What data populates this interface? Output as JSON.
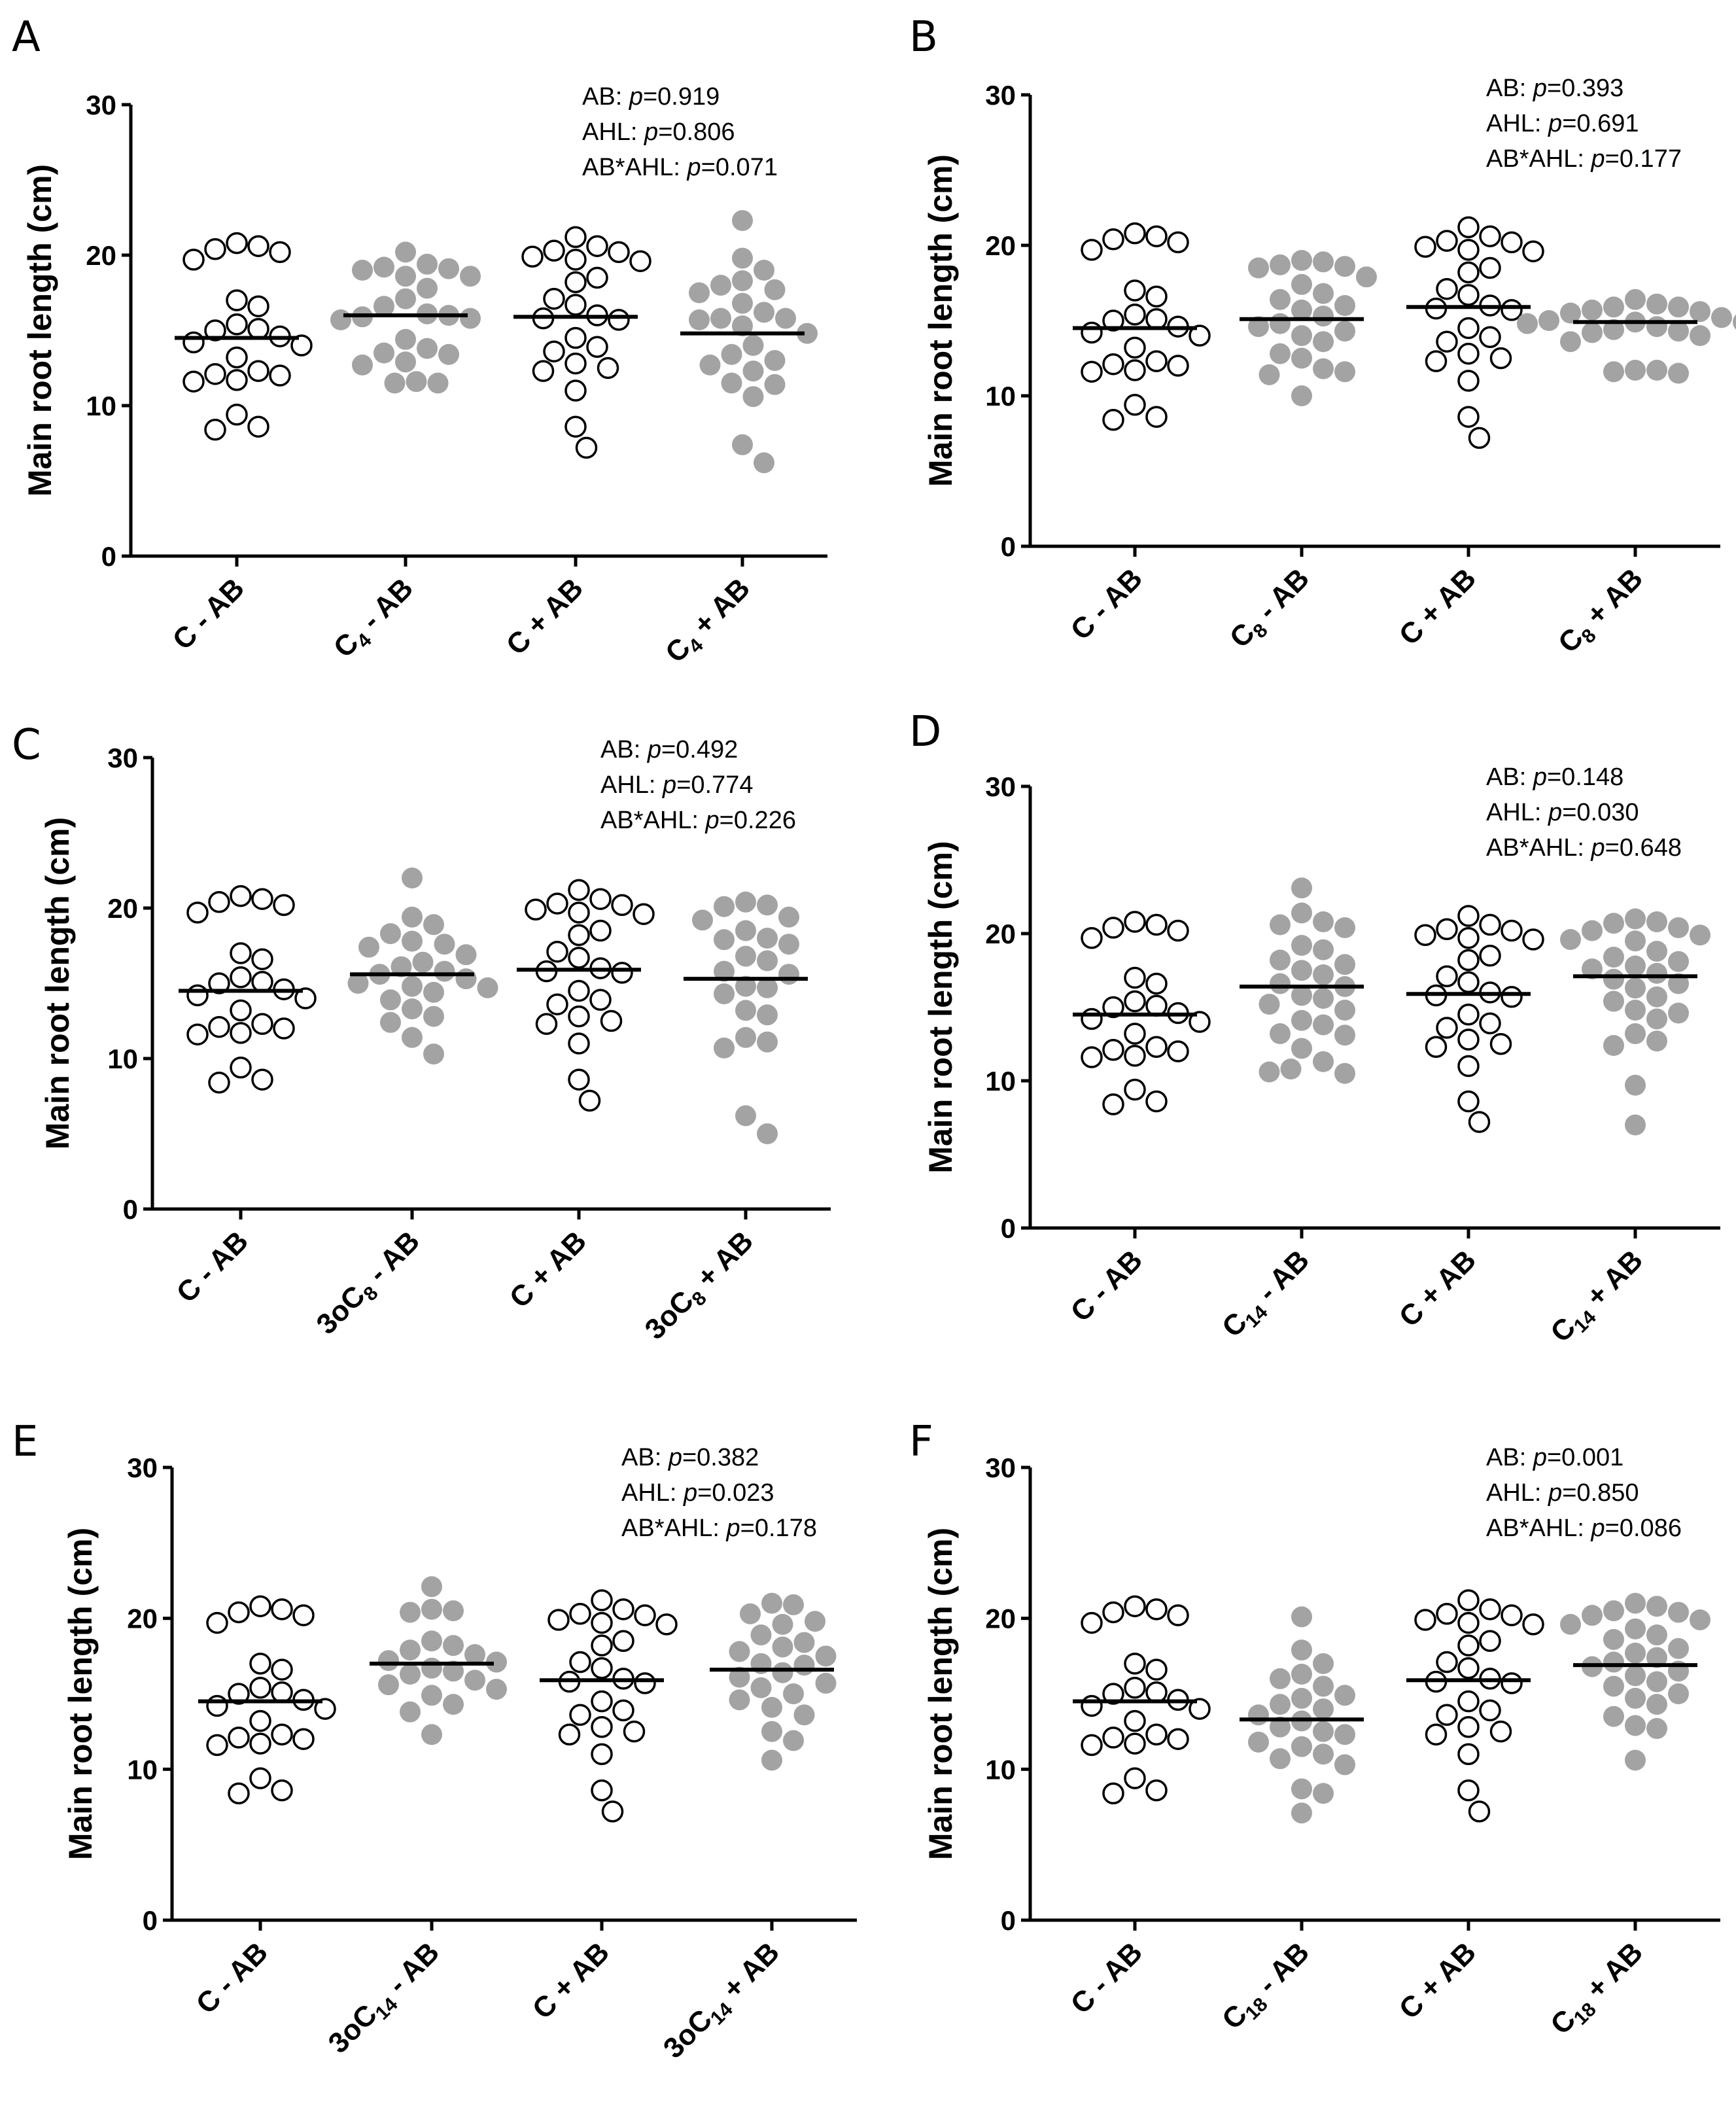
{
  "figure": {
    "ylabel": "Main root length (cm)"
  },
  "chart_data": [
    {
      "panel": "A",
      "type": "scatter",
      "ylabel": "Main root length (cm)",
      "ylim": [
        0,
        30
      ],
      "yticks": [
        0,
        10,
        20,
        30
      ],
      "xlabels": [
        [
          "C - AB"
        ],
        [
          "C",
          "4",
          " - AB"
        ],
        [
          "C + AB"
        ],
        [
          "C",
          "4",
          " + AB"
        ]
      ],
      "stats": [
        [
          "AB: ",
          "p",
          "=0.919"
        ],
        [
          "AHL: ",
          "p",
          "=0.806"
        ],
        [
          "AB*AHL: ",
          "p",
          "=0.071"
        ]
      ],
      "groups": [
        {
          "name": "C - AB",
          "filled": false,
          "mean": 14.5,
          "values": [
            20.8,
            20.4,
            20.2,
            20.6,
            19.7,
            17.0,
            16.6,
            15.4,
            15.1,
            15.0,
            14.6,
            14.2,
            14.0,
            13.2,
            12.1,
            12.0,
            12.3,
            11.7,
            11.6,
            9.4,
            8.6,
            8.4
          ]
        },
        {
          "name": "C4 - AB",
          "filled": true,
          "mean": 16.0,
          "values": [
            19.2,
            19.1,
            19.4,
            20.2,
            19.0,
            18.6,
            18.6,
            17.8,
            17.1,
            16.6,
            16.1,
            16.0,
            15.8,
            15.7,
            15.9,
            14.4,
            13.8,
            13.5,
            13.4,
            12.9,
            12.7,
            11.6,
            11.5,
            11.5
          ]
        },
        {
          "name": "C + AB",
          "filled": false,
          "mean": 15.9,
          "values": [
            21.2,
            20.6,
            20.2,
            20.3,
            19.9,
            19.7,
            19.6,
            18.5,
            18.2,
            17.1,
            16.7,
            16.0,
            15.7,
            15.8,
            14.5,
            13.9,
            13.6,
            12.8,
            12.5,
            12.3,
            11.0,
            8.6,
            7.2
          ]
        },
        {
          "name": "C4 + AB",
          "filled": true,
          "mean": 14.8,
          "values": [
            22.3,
            19.8,
            19.0,
            18.3,
            18.0,
            17.5,
            17.7,
            16.8,
            16.2,
            15.8,
            15.8,
            15.3,
            15.7,
            14.8,
            14.0,
            13.4,
            13.0,
            12.7,
            12.3,
            11.5,
            11.4,
            10.6,
            7.4,
            6.2
          ]
        }
      ]
    },
    {
      "panel": "B",
      "type": "scatter",
      "ylabel": "Main root length (cm)",
      "ylim": [
        0,
        30
      ],
      "yticks": [
        0,
        10,
        20,
        30
      ],
      "xlabels": [
        [
          "C - AB"
        ],
        [
          "C",
          "8",
          " - AB"
        ],
        [
          "C + AB"
        ],
        [
          "C",
          "8",
          " + AB"
        ]
      ],
      "stats": [
        [
          "AB: ",
          "p",
          "=0.393"
        ],
        [
          "AHL: ",
          "p",
          "=0.691"
        ],
        [
          "AB*AHL: ",
          "p",
          "=0.177"
        ]
      ],
      "groups": [
        {
          "name": "C - AB",
          "filled": false,
          "mean": 14.5,
          "values": [
            20.8,
            20.4,
            20.2,
            20.6,
            19.7,
            17.0,
            16.6,
            15.4,
            15.1,
            15.0,
            14.6,
            14.2,
            14.0,
            13.2,
            12.1,
            12.0,
            12.3,
            11.7,
            11.6,
            9.4,
            8.6,
            8.4
          ]
        },
        {
          "name": "C8 - AB",
          "filled": true,
          "mean": 15.1,
          "values": [
            19.0,
            18.7,
            18.6,
            18.9,
            18.5,
            17.9,
            17.4,
            16.8,
            16.4,
            16.0,
            15.7,
            15.3,
            14.8,
            14.6,
            14.3,
            14.0,
            13.6,
            12.8,
            12.5,
            11.8,
            11.6,
            11.4,
            10.0
          ]
        },
        {
          "name": "C + AB",
          "filled": false,
          "mean": 15.9,
          "values": [
            21.2,
            20.6,
            20.2,
            20.3,
            19.9,
            19.7,
            19.6,
            18.5,
            18.2,
            17.1,
            16.7,
            16.0,
            15.7,
            15.8,
            14.5,
            13.9,
            13.6,
            12.8,
            12.5,
            12.3,
            11.0,
            8.6,
            7.2
          ]
        },
        {
          "name": "C8 + AB",
          "filled": true,
          "mean": 14.9,
          "values": [
            16.4,
            16.1,
            15.9,
            15.7,
            15.9,
            15.5,
            15.6,
            15.2,
            15.0,
            14.9,
            14.9,
            14.8,
            14.6,
            14.4,
            14.3,
            14.2,
            14.2,
            14.0,
            13.6,
            11.7,
            11.6,
            11.7,
            11.5
          ]
        }
      ]
    },
    {
      "panel": "C",
      "type": "scatter",
      "ylabel": "Main root length (cm)",
      "ylim": [
        0,
        30
      ],
      "yticks": [
        0,
        10,
        20,
        30
      ],
      "xlabels": [
        [
          "C - AB"
        ],
        [
          "3oC",
          "8",
          " - AB"
        ],
        [
          "C + AB"
        ],
        [
          "3oC",
          "8",
          " + AB"
        ]
      ],
      "stats": [
        [
          "AB: ",
          "p",
          "=0.492"
        ],
        [
          "AHL: ",
          "p",
          "=0.774"
        ],
        [
          "AB*AHL: ",
          "p",
          "=0.226"
        ]
      ],
      "groups": [
        {
          "name": "C - AB",
          "filled": false,
          "mean": 14.5,
          "values": [
            20.8,
            20.4,
            20.2,
            20.6,
            19.7,
            17.0,
            16.6,
            15.4,
            15.1,
            15.0,
            14.6,
            14.2,
            14.0,
            13.2,
            12.1,
            12.0,
            12.3,
            11.7,
            11.6,
            9.4,
            8.6,
            8.4
          ]
        },
        {
          "name": "3oC8 - AB",
          "filled": true,
          "mean": 15.6,
          "values": [
            22.0,
            19.4,
            18.9,
            18.3,
            17.8,
            17.6,
            17.4,
            16.9,
            16.4,
            16.1,
            15.8,
            15.6,
            15.3,
            15.0,
            14.8,
            14.7,
            14.4,
            13.9,
            13.3,
            12.8,
            12.4,
            11.4,
            10.3
          ]
        },
        {
          "name": "C + AB",
          "filled": false,
          "mean": 15.9,
          "values": [
            21.2,
            20.6,
            20.2,
            20.3,
            19.9,
            19.7,
            19.6,
            18.5,
            18.2,
            17.1,
            16.7,
            16.0,
            15.7,
            15.8,
            14.5,
            13.9,
            13.6,
            12.8,
            12.5,
            12.3,
            11.0,
            8.6,
            7.2
          ]
        },
        {
          "name": "3oC8 + AB",
          "filled": true,
          "mean": 15.3,
          "values": [
            20.4,
            20.2,
            20.1,
            19.2,
            19.4,
            18.5,
            18.0,
            17.6,
            17.9,
            16.8,
            16.5,
            15.8,
            15.6,
            14.8,
            14.7,
            14.3,
            13.2,
            12.9,
            11.4,
            11.1,
            10.7,
            6.2,
            5.0
          ]
        }
      ]
    },
    {
      "panel": "D",
      "type": "scatter",
      "ylabel": "Main root length (cm)",
      "ylim": [
        0,
        30
      ],
      "yticks": [
        0,
        10,
        20,
        30
      ],
      "xlabels": [
        [
          "C - AB"
        ],
        [
          "C",
          "14",
          " - AB"
        ],
        [
          "C + AB"
        ],
        [
          "C",
          "14",
          " + AB"
        ]
      ],
      "stats": [
        [
          "AB: ",
          "p",
          "=0.148"
        ],
        [
          "AHL: ",
          "p",
          "=0.030"
        ],
        [
          "AB*AHL: ",
          "p",
          "=0.648"
        ]
      ],
      "groups": [
        {
          "name": "C - AB",
          "filled": false,
          "mean": 14.5,
          "values": [
            20.8,
            20.4,
            20.2,
            20.6,
            19.7,
            17.0,
            16.6,
            15.4,
            15.1,
            15.0,
            14.6,
            14.2,
            14.0,
            13.2,
            12.1,
            12.0,
            12.3,
            11.7,
            11.6,
            9.4,
            8.6,
            8.4
          ]
        },
        {
          "name": "C14 - AB",
          "filled": true,
          "mean": 16.4,
          "values": [
            23.1,
            21.4,
            20.8,
            20.6,
            20.4,
            19.2,
            18.9,
            18.2,
            17.9,
            17.5,
            17.2,
            16.6,
            16.4,
            15.8,
            15.6,
            15.2,
            14.8,
            14.1,
            13.8,
            13.2,
            13.1,
            12.2,
            11.3,
            10.8,
            10.6,
            10.5
          ]
        },
        {
          "name": "C + AB",
          "filled": false,
          "mean": 15.9,
          "values": [
            21.2,
            20.6,
            20.2,
            20.3,
            19.9,
            19.7,
            19.6,
            18.5,
            18.2,
            17.1,
            16.7,
            16.0,
            15.7,
            15.8,
            14.5,
            13.9,
            13.6,
            12.8,
            12.5,
            12.3,
            11.0,
            8.6,
            7.2
          ]
        },
        {
          "name": "C14 + AB",
          "filled": true,
          "mean": 17.1,
          "values": [
            21.0,
            20.8,
            20.4,
            20.7,
            20.2,
            19.9,
            19.6,
            19.5,
            18.8,
            18.4,
            18.1,
            17.8,
            17.6,
            17.3,
            16.9,
            16.6,
            16.3,
            15.7,
            15.4,
            14.8,
            14.6,
            14.2,
            13.2,
            12.7,
            12.4,
            9.7,
            7.0
          ]
        }
      ]
    },
    {
      "panel": "E",
      "type": "scatter",
      "ylabel": "Main root length (cm)",
      "ylim": [
        0,
        30
      ],
      "yticks": [
        0,
        10,
        20,
        30
      ],
      "xlabels": [
        [
          "C - AB"
        ],
        [
          "3oC",
          "14",
          " - AB"
        ],
        [
          "C + AB"
        ],
        [
          "3oC",
          "14",
          " + AB"
        ]
      ],
      "stats": [
        [
          "AB: ",
          "p",
          "=0.382"
        ],
        [
          "AHL: ",
          "p",
          "=0.023"
        ],
        [
          "AB*AHL: ",
          "p",
          "=0.178"
        ]
      ],
      "groups": [
        {
          "name": "C - AB",
          "filled": false,
          "mean": 14.5,
          "values": [
            20.8,
            20.4,
            20.2,
            20.6,
            19.7,
            17.0,
            16.6,
            15.4,
            15.1,
            15.0,
            14.6,
            14.2,
            14.0,
            13.2,
            12.1,
            12.0,
            12.3,
            11.7,
            11.6,
            9.4,
            8.6,
            8.4
          ]
        },
        {
          "name": "3oC14 - AB",
          "filled": true,
          "mean": 17.0,
          "values": [
            22.1,
            20.6,
            20.5,
            20.4,
            18.5,
            18.2,
            17.9,
            17.6,
            17.2,
            17.1,
            16.7,
            16.5,
            16.3,
            15.9,
            15.6,
            15.3,
            14.9,
            14.3,
            13.8,
            12.3
          ]
        },
        {
          "name": "C + AB",
          "filled": false,
          "mean": 15.9,
          "values": [
            21.2,
            20.6,
            20.2,
            20.3,
            19.9,
            19.7,
            19.6,
            18.5,
            18.2,
            17.1,
            16.7,
            16.0,
            15.7,
            15.8,
            14.5,
            13.9,
            13.6,
            12.8,
            12.5,
            12.3,
            11.0,
            8.6,
            7.2
          ]
        },
        {
          "name": "3oC14 + AB",
          "filled": true,
          "mean": 16.6,
          "values": [
            21.0,
            20.9,
            20.3,
            19.8,
            19.6,
            18.9,
            18.4,
            18.1,
            17.8,
            17.5,
            17.0,
            16.9,
            16.4,
            16.1,
            15.7,
            15.4,
            15.0,
            14.6,
            14.1,
            13.6,
            12.5,
            11.9,
            10.6
          ]
        }
      ]
    },
    {
      "panel": "F",
      "type": "scatter",
      "ylabel": "Main root length (cm)",
      "ylim": [
        0,
        30
      ],
      "yticks": [
        0,
        10,
        20,
        30
      ],
      "xlabels": [
        [
          "C - AB"
        ],
        [
          "C",
          "18",
          " - AB"
        ],
        [
          "C + AB"
        ],
        [
          "C",
          "18",
          " + AB"
        ]
      ],
      "stats": [
        [
          "AB: ",
          "p",
          "=0.001"
        ],
        [
          "AHL: ",
          "p",
          "=0.850"
        ],
        [
          "AB*AHL: ",
          "p",
          "=0.086"
        ]
      ],
      "groups": [
        {
          "name": "C - AB",
          "filled": false,
          "mean": 14.5,
          "values": [
            20.8,
            20.4,
            20.2,
            20.6,
            19.7,
            17.0,
            16.6,
            15.4,
            15.1,
            15.0,
            14.6,
            14.2,
            14.0,
            13.2,
            12.1,
            12.0,
            12.3,
            11.7,
            11.6,
            9.4,
            8.6,
            8.4
          ]
        },
        {
          "name": "C18 - AB",
          "filled": true,
          "mean": 13.3,
          "values": [
            20.1,
            17.9,
            17.0,
            16.3,
            16.0,
            15.5,
            14.9,
            14.7,
            14.3,
            14.0,
            13.6,
            13.2,
            12.8,
            12.5,
            12.3,
            11.8,
            11.5,
            11.0,
            10.7,
            10.3,
            8.7,
            8.4,
            7.1
          ]
        },
        {
          "name": "C + AB",
          "filled": false,
          "mean": 15.9,
          "values": [
            21.2,
            20.6,
            20.2,
            20.3,
            19.9,
            19.7,
            19.6,
            18.5,
            18.2,
            17.1,
            16.7,
            16.0,
            15.7,
            15.8,
            14.5,
            13.9,
            13.6,
            12.8,
            12.5,
            12.3,
            11.0,
            8.6,
            7.2
          ]
        },
        {
          "name": "C18 + AB",
          "filled": true,
          "mean": 16.9,
          "values": [
            21.0,
            20.8,
            20.4,
            20.5,
            20.2,
            19.9,
            19.6,
            19.3,
            18.9,
            18.6,
            18.0,
            17.7,
            17.4,
            17.1,
            16.8,
            16.5,
            16.2,
            15.8,
            15.5,
            15.0,
            14.7,
            14.3,
            13.5,
            12.9,
            12.7,
            10.6
          ]
        }
      ]
    }
  ]
}
